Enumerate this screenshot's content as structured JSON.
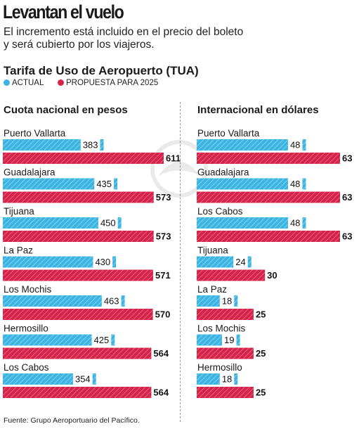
{
  "header": {
    "title": "Levantan el vuelo",
    "subtitle_line1": "El incremento está incluido en el precio del boleto",
    "subtitle_line2": "y será cubierto por los viajeros."
  },
  "source": "Fuente: Grupo Aeroportuario del Pacífico.",
  "colors": {
    "actual": "#3bb4e2",
    "proposed": "#d6234a",
    "hatch": "#ffffff"
  },
  "chart_data": [
    {
      "type": "bar",
      "orientation": "horizontal",
      "title": "Tarifa de Uso de Aeropuerto (TUA)",
      "subtitle": "Cuota nacional en pesos",
      "legend": [
        "ACTUAL",
        "PROPUESTA PARA 2025"
      ],
      "legend_position": "top-left",
      "categories": [
        "Puerto Vallarta",
        "Guadalajara",
        "Tijuana",
        "La Paz",
        "Los Mochis",
        "Hermosillo",
        "Los Cabos"
      ],
      "series": [
        {
          "name": "ACTUAL",
          "values": [
            383,
            435,
            450,
            430,
            463,
            425,
            354
          ]
        },
        {
          "name": "PROPUESTA PARA 2025",
          "values": [
            611,
            573,
            573,
            571,
            570,
            564,
            564
          ]
        }
      ],
      "xlim": [
        0,
        611
      ],
      "grid": false
    },
    {
      "type": "bar",
      "orientation": "horizontal",
      "title": "Tarifa de Uso de Aeropuerto (TUA)",
      "subtitle": "Internacional en dólares",
      "legend": [
        "ACTUAL",
        "PROPUESTA PARA 2025"
      ],
      "legend_position": "top-left",
      "categories": [
        "Puerto Vallarta",
        "Guadalajara",
        "Los Cabos",
        "Tijuana",
        "La Paz",
        "Los Mochis",
        "Hermosillo"
      ],
      "series": [
        {
          "name": "ACTUAL",
          "values": [
            48,
            48,
            48,
            24,
            18,
            19,
            18
          ]
        },
        {
          "name": "PROPUESTA PARA 2025",
          "values": [
            63,
            63,
            63,
            30,
            25,
            25,
            25
          ]
        }
      ],
      "xlim": [
        0,
        63
      ],
      "grid": false
    }
  ]
}
